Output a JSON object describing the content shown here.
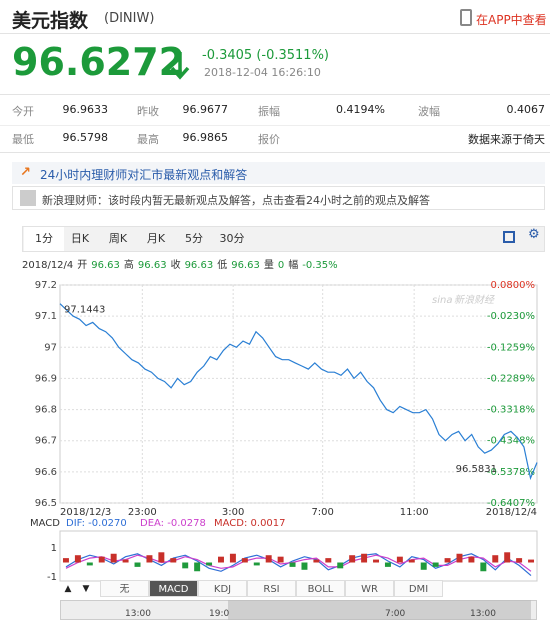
{
  "header": {
    "title": "美元指数",
    "code": "(DINIW)",
    "app_link": "在APP中查看"
  },
  "quote": {
    "price": "96.6272",
    "change": "-0.3405",
    "change_pct": "(-0.3511%)",
    "time": "2018-12-04 16:26:10"
  },
  "stats": [
    [
      [
        "今开",
        "96.9633"
      ],
      [
        "昨收",
        "96.9677"
      ],
      [
        "振幅",
        "0.4194%"
      ],
      [
        "波幅",
        "0.4067"
      ]
    ],
    [
      [
        "最低",
        "96.5798"
      ],
      [
        "最高",
        "96.9865"
      ],
      [
        "报价",
        "数据来源于倚天"
      ]
    ]
  ],
  "news": {
    "headline": "24小时内理财师对汇市最新观点和解答",
    "message": "新浪理财师：该时段内暂无最新观点及解答，点击查看24小时之前的观点及解答"
  },
  "period_tabs": [
    "1分",
    "日K",
    "周K",
    "月K",
    "5分",
    "30分"
  ],
  "info": {
    "date": "2018/12/4",
    "items": [
      [
        "开",
        "96.63"
      ],
      [
        "高",
        "96.63"
      ],
      [
        "收",
        "96.63"
      ],
      [
        "低",
        "96.63"
      ],
      [
        "量",
        "0"
      ],
      [
        "幅",
        "-0.35%"
      ]
    ]
  },
  "chart_data": [
    {
      "type": "line",
      "color": "#2a7fd4",
      "grid": true,
      "values": [
        97.14,
        97.12,
        97.1,
        97.09,
        97.07,
        97.08,
        97.06,
        97.05,
        97.03,
        97.0,
        96.98,
        96.96,
        96.95,
        96.93,
        96.92,
        96.9,
        96.89,
        96.87,
        96.9,
        96.88,
        96.89,
        96.92,
        96.94,
        96.97,
        96.96,
        96.99,
        97.01,
        97.0,
        97.02,
        97.01,
        97.05,
        97.03,
        97.0,
        96.97,
        96.96,
        96.96,
        96.95,
        96.94,
        96.93,
        96.95,
        96.93,
        96.92,
        96.92,
        96.91,
        96.93,
        96.9,
        96.92,
        96.89,
        96.87,
        96.83,
        96.8,
        96.79,
        96.81,
        96.8,
        96.79,
        96.79,
        96.8,
        96.77,
        96.72,
        96.7,
        96.72,
        96.73,
        96.7,
        96.72,
        96.68,
        96.66,
        96.67,
        96.69,
        96.72,
        96.73,
        96.71,
        96.68,
        96.58,
        96.63
      ],
      "ylim": [
        96.5,
        97.2
      ],
      "yticks": [
        97.2,
        97.1,
        97,
        96.9,
        96.8,
        96.7,
        96.6,
        96.5
      ],
      "y2lim": [
        -0.6407,
        0.08
      ],
      "y2ticks": [
        {
          "value": 0.08,
          "label": "0.0800%"
        },
        {
          "value": -0.023,
          "label": "-0.0230%"
        },
        {
          "value": -0.1259,
          "label": "-0.1259%"
        },
        {
          "value": -0.2289,
          "label": "-0.2289%"
        },
        {
          "value": -0.3318,
          "label": "-0.3318%"
        },
        {
          "value": -0.4348,
          "label": "-0.4348%"
        },
        {
          "value": -0.5378,
          "label": "-0.5378%"
        },
        {
          "value": -0.6407,
          "label": "-0.6407%"
        }
      ],
      "xticks": [
        {
          "value": 0,
          "label": "2018/12/3"
        },
        {
          "value": 12.6,
          "label": "23:00"
        },
        {
          "value": 26.5,
          "label": "3:00"
        },
        {
          "value": 40.2,
          "label": "7:00"
        },
        {
          "value": 54.2,
          "label": "11:00"
        },
        {
          "value": 73,
          "label": "2018/12/4"
        }
      ],
      "annotations": [
        97.1443,
        96.5831
      ],
      "watermark": [
        "sina",
        "新浪财经"
      ]
    },
    {
      "type": "macd",
      "title": "MACD",
      "ylim": [
        -1.2,
        1.2
      ],
      "yticks": [
        1,
        -1
      ],
      "negative_color": "#1f9a3c",
      "series": [
        {
          "name": "DIF: -0.0270",
          "color": "#2f6fd6",
          "values": [
            -0.3,
            0.2,
            0.5,
            0.3,
            -0.1,
            0.4,
            0.6,
            0.2,
            -0.2,
            0.3,
            0.5,
            0.1,
            -0.4,
            -0.6,
            -0.2,
            0.3,
            0.5,
            0.2,
            -0.3,
            0.1,
            0.4,
            0.2,
            -0.5,
            -0.2,
            0.3,
            0.5,
            0.6,
            0.1,
            -0.3,
            0.4,
            0.2,
            -0.4,
            -0.1,
            0.4,
            0.6,
            0.2,
            -0.5,
            0.3,
            -0.2,
            -0.9
          ]
        },
        {
          "name": "DEA: -0.0278",
          "color": "#cc3fcc",
          "values": [
            -0.4,
            0.0,
            0.3,
            0.4,
            0.1,
            0.2,
            0.5,
            0.3,
            0.0,
            0.1,
            0.4,
            0.2,
            -0.2,
            -0.4,
            -0.3,
            0.1,
            0.3,
            0.3,
            -0.1,
            0.0,
            0.2,
            0.3,
            -0.3,
            -0.3,
            0.1,
            0.3,
            0.5,
            0.3,
            -0.1,
            0.2,
            0.3,
            -0.2,
            -0.2,
            0.2,
            0.4,
            0.3,
            -0.3,
            0.1,
            0.0,
            -0.6
          ]
        },
        {
          "name": "MACD: 0.0017",
          "color": "#c8302a",
          "bars": true,
          "values": [
            0.3,
            0.5,
            -0.2,
            0.4,
            0.6,
            0.2,
            -0.3,
            0.5,
            0.7,
            0.3,
            -0.4,
            -0.6,
            -0.2,
            0.4,
            0.6,
            0.3,
            -0.2,
            0.5,
            0.4,
            -0.3,
            -0.5,
            0.2,
            0.3,
            -0.4,
            0.5,
            0.6,
            0.2,
            -0.3,
            0.4,
            0.2,
            -0.5,
            -0.3,
            0.3,
            0.6,
            0.4,
            -0.6,
            0.5,
            0.7,
            0.3,
            0.2
          ]
        }
      ]
    }
  ],
  "indicator_tabs": [
    "无",
    "MACD",
    "KDJ",
    "RSI",
    "BOLL",
    "WR",
    "DMI"
  ],
  "nav_buttons": [
    "▲",
    "▼"
  ],
  "navigator_labels": [
    "13:00",
    "19:0",
    "7:00",
    "13:00"
  ]
}
